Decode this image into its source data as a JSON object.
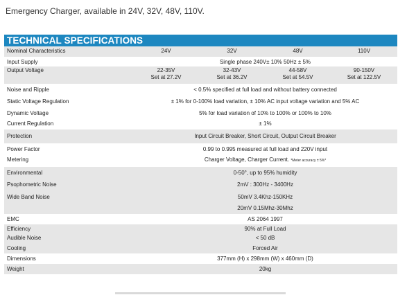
{
  "intro": "Emergency Charger, available in 24V, 32V, 48V, 110V.",
  "banner": "TECHNICAL SPECIFICATIONS",
  "header": {
    "label": "Nominal Characteristics",
    "cols": [
      "24V",
      "32V",
      "48V",
      "110V"
    ]
  },
  "rows": {
    "input_supply": {
      "label": "Input Supply",
      "value": "Single phase 240V± 10% 50Hz ± 5%"
    },
    "output_voltage": {
      "label": "Output Voltage",
      "range": [
        "22-35V",
        "32-43V",
        "44-58V",
        "90-150V"
      ],
      "set": [
        "Set at 27.2V",
        "Set at 36.2V",
        "Set at 54.5V",
        "Set at 122.5V"
      ]
    },
    "noise_ripple": {
      "label": "Noise and Ripple",
      "value": "< 0.5% specified at full load and without battery connected"
    },
    "static_reg": {
      "label": "Static Voltage Regulation",
      "value": "± 1% for 0-100% load variation, ± 10% AC input voltage variation and 5% AC"
    },
    "dynamic_v": {
      "label": "Dynamic Voltage",
      "value": "5% for load variation of 10% to 100% or 100% to 10%"
    },
    "current_reg": {
      "label": "Current Regulation",
      "value": "± 1%"
    },
    "protection": {
      "label": "Protection",
      "value": "Input Circuit Breaker, Short Circuit, Output Circuit Breaker"
    },
    "power_factor": {
      "label": "Power Factor",
      "value": "0.99 to 0.995 measured at full load and 220V input"
    },
    "metering": {
      "label": "Metering",
      "value": "Charger Voltage, Charger Current.",
      "note": "*Meter accuracy ± 5%*"
    },
    "environmental": {
      "label": "Environmental",
      "value": "0-50°, up to 95% humidity"
    },
    "psophometric": {
      "label": "Psophometric Noise",
      "value": "2mV : 300Hz - 3400Hz"
    },
    "wide_band": {
      "label": "Wide Band Noise",
      "value1": "50mV 3.4Khz-150KHz",
      "value2": "20mV 0.15Mhz-30Mhz"
    },
    "emc": {
      "label": "EMC",
      "value": "AS 2064 1997"
    },
    "efficiency": {
      "label": "Efficiency",
      "value": "90% at Full Load"
    },
    "audible": {
      "label": "Audible Noise",
      "value": "< 50 dB"
    },
    "cooling": {
      "label": "Cooling",
      "value": "Forced Air"
    },
    "dimensions": {
      "label": "Dimensions",
      "value": "377mm (H) x 298mm (W) x 460mm (D)"
    },
    "weight": {
      "label": "Weight",
      "value": "20kg"
    }
  }
}
